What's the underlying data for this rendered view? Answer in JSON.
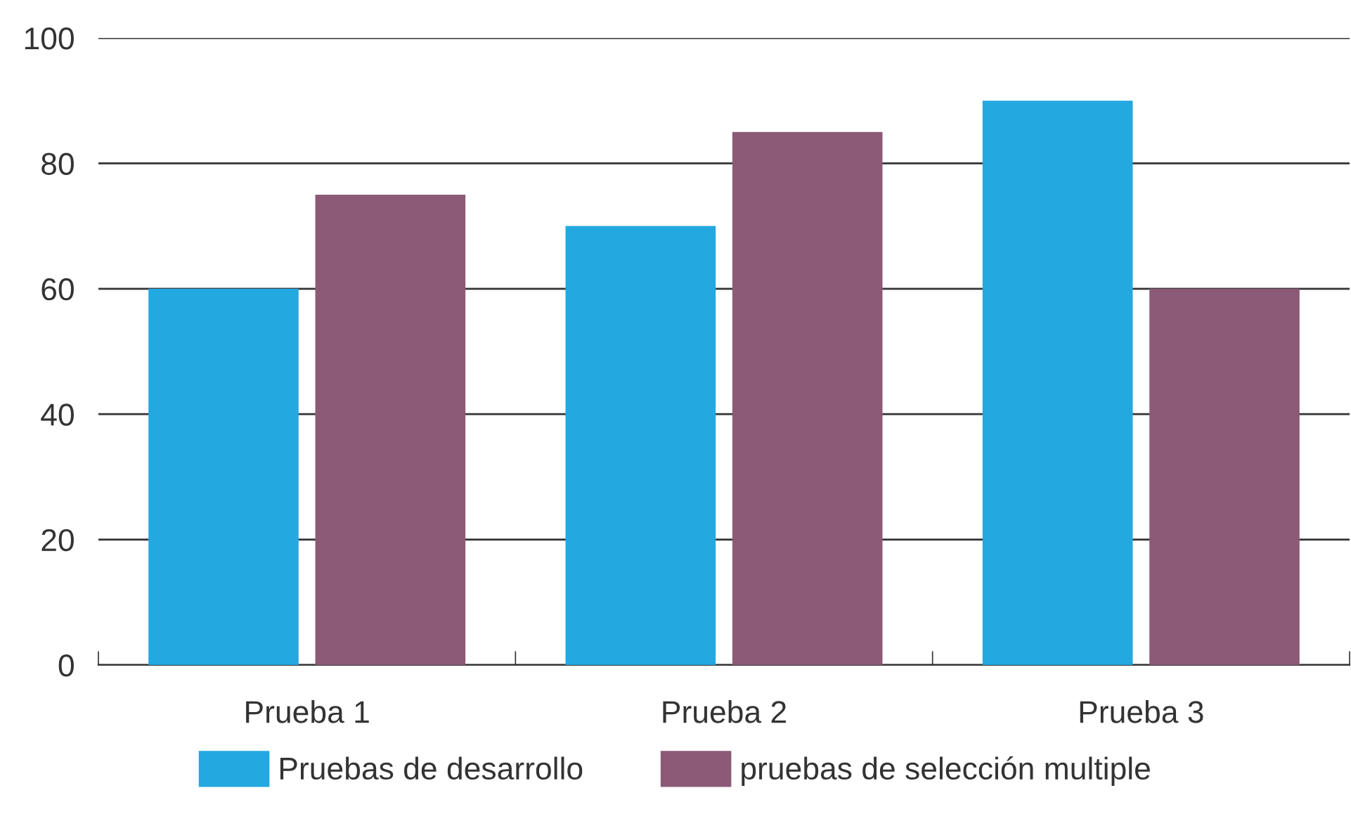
{
  "chart_data": {
    "type": "bar",
    "categories": [
      "Prueba 1",
      "Prueba 2",
      "Prueba 3"
    ],
    "series": [
      {
        "name": "Pruebas de desarrollo",
        "color": "#23a8e0",
        "values": [
          60,
          70,
          90
        ]
      },
      {
        "name": "pruebas de selección multiple",
        "color": "#8b5a76",
        "values": [
          75,
          85,
          60
        ]
      }
    ],
    "ylim": [
      0,
      100
    ],
    "yticks": [
      0,
      20,
      40,
      60,
      80,
      100
    ],
    "grid": "y",
    "legend": "bottom"
  }
}
